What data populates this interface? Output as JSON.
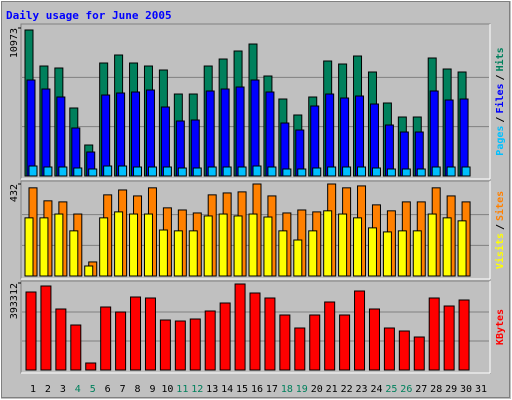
{
  "chart_data": [
    {
      "type": "bar",
      "title": "Daily usage for June 2005",
      "legend_separator": "/",
      "ylim": [
        0,
        10973
      ],
      "yticks": [
        10973
      ],
      "series": [
        {
          "name": "Hits",
          "color": "#00805c",
          "values": [
            10825,
            8155,
            8007,
            5042,
            2298,
            8378,
            8971,
            8378,
            8155,
            7859,
            6079,
            6079,
            8155,
            8674,
            9268,
            9786,
            7414,
            5709,
            4523,
            5857,
            8526,
            8304,
            8897,
            7711,
            5412,
            4374,
            4374,
            8749,
            7933,
            7711,
            null
          ]
        },
        {
          "name": "Files",
          "color": "#0000ff",
          "values": [
            7117,
            6450,
            5857,
            3559,
            1779,
            6005,
            6154,
            6228,
            6376,
            5116,
            4078,
            4152,
            6302,
            6450,
            6598,
            7117,
            6228,
            3929,
            3410,
            5190,
            6079,
            5783,
            5931,
            5338,
            3781,
            3262,
            3262,
            6302,
            5635,
            5709,
            null
          ]
        },
        {
          "name": "Pages",
          "color": "#00c0ff",
          "values": [
            741,
            667,
            667,
            593,
            519,
            741,
            741,
            667,
            667,
            667,
            593,
            593,
            667,
            667,
            667,
            741,
            667,
            519,
            519,
            593,
            667,
            667,
            667,
            593,
            519,
            519,
            519,
            667,
            667,
            667,
            null
          ]
        }
      ]
    },
    {
      "type": "bar",
      "legend_separator": "/",
      "ylim": [
        0,
        432
      ],
      "yticks": [
        432
      ],
      "series": [
        {
          "name": "Sites",
          "color": "#ff8000",
          "values": [
            414,
            353,
            348,
            291,
            66,
            381,
            404,
            376,
            414,
            320,
            310,
            296,
            381,
            390,
            395,
            432,
            376,
            296,
            310,
            301,
            432,
            414,
            423,
            334,
            306,
            348,
            348,
            414,
            376,
            348,
            null
          ]
        },
        {
          "name": "Visits",
          "color": "#ffff00",
          "values": [
            273,
            273,
            291,
            212,
            47,
            273,
            301,
            291,
            291,
            216,
            212,
            212,
            282,
            291,
            282,
            291,
            277,
            212,
            169,
            212,
            306,
            291,
            273,
            226,
            207,
            212,
            212,
            291,
            273,
            259,
            null
          ]
        }
      ]
    },
    {
      "type": "bar",
      "ylim": [
        0,
        393312
      ],
      "yticks": [
        393312
      ],
      "categories": [
        "1",
        "2",
        "3",
        "4",
        "5",
        "6",
        "7",
        "8",
        "9",
        "10",
        "11",
        "12",
        "13",
        "14",
        "15",
        "16",
        "17",
        "18",
        "19",
        "20",
        "21",
        "22",
        "23",
        "24",
        "25",
        "26",
        "27",
        "28",
        "29",
        "30",
        "31"
      ],
      "category_colors": [
        "#000000",
        "#000000",
        "#000000",
        "#00805c",
        "#00805c",
        "#000000",
        "#000000",
        "#000000",
        "#000000",
        "#000000",
        "#00805c",
        "#00805c",
        "#000000",
        "#000000",
        "#000000",
        "#000000",
        "#000000",
        "#00805c",
        "#00805c",
        "#000000",
        "#000000",
        "#000000",
        "#000000",
        "#000000",
        "#00805c",
        "#00805c",
        "#000000",
        "#000000",
        "#000000",
        "#000000",
        "#000000"
      ],
      "series": [
        {
          "name": "KBytes",
          "color": "#ff0000",
          "values": [
            352638,
            379764,
            275781,
            203445,
            31647,
            284823,
            262218,
            330033,
            325512,
            226050,
            221529,
            230571,
            266739,
            302907,
            388806,
            348117,
            325512,
            248655,
            189882,
            248655,
            307428,
            248655,
            357159,
            275781,
            189882,
            176319,
            149193,
            325512,
            289344,
            316470,
            null
          ]
        }
      ]
    }
  ]
}
